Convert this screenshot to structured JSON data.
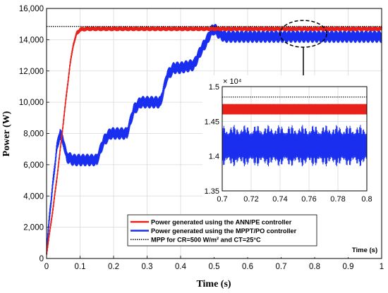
{
  "chart_data": {
    "type": "line",
    "main": {
      "xlabel": "Time (s)",
      "ylabel": "Power (W)",
      "xlim": [
        0,
        1
      ],
      "ylim": [
        0,
        16000
      ],
      "xticks": [
        0,
        0.1,
        0.2,
        0.3,
        0.4,
        0.5,
        0.6,
        0.7,
        0.8,
        0.9,
        1
      ],
      "xtick_labels": [
        "0",
        "0.1",
        "0.2",
        "0.3",
        "0.4",
        "0.5",
        "0.6",
        "0.7",
        "0.8",
        "0.9",
        "1"
      ],
      "yticks": [
        0,
        2000,
        4000,
        6000,
        8000,
        10000,
        12000,
        14000,
        16000
      ],
      "ytick_labels": [
        "0",
        "2,000",
        "4,000",
        "6,000",
        "8,000",
        "10,000",
        "12,000",
        "14,000",
        "16,000"
      ],
      "grid": true
    },
    "legend": {
      "placement": "bottom-center",
      "entries": [
        {
          "label": "Power generated using the ANN/PE controller",
          "color": "#e8201a",
          "style": "solid"
        },
        {
          "label": "Power generated using the MPPT/PO controller",
          "color": "#1a2ef0",
          "style": "solid"
        },
        {
          "label": "MPP for CR=500 W/m² and CT=25°C",
          "color": "#000000",
          "style": "dotted"
        }
      ]
    },
    "series": [
      {
        "color": "#e8201a",
        "x": [
          0,
          0.01,
          0.02,
          0.03,
          0.04,
          0.05,
          0.06,
          0.07,
          0.08,
          0.09,
          0.1,
          0.12,
          0.15,
          0.2,
          0.3,
          0.5,
          0.7,
          1.0
        ],
        "y": [
          300,
          1800,
          3300,
          5000,
          6800,
          8700,
          10600,
          12400,
          13700,
          14400,
          14650,
          14700,
          14700,
          14700,
          14700,
          14700,
          14700,
          14700
        ],
        "ripple": 150
      },
      {
        "color": "#1a2ef0",
        "x": [
          0,
          0.01,
          0.02,
          0.03,
          0.04,
          0.05,
          0.06,
          0.08,
          0.1,
          0.12,
          0.15,
          0.17,
          0.19,
          0.2,
          0.24,
          0.26,
          0.28,
          0.3,
          0.34,
          0.36,
          0.38,
          0.4,
          0.44,
          0.46,
          0.48,
          0.49,
          0.5,
          0.51,
          0.53,
          0.55,
          0.6,
          0.7,
          0.8,
          0.9,
          1.0
        ],
        "y": [
          500,
          3000,
          5000,
          7000,
          8000,
          7500,
          6500,
          6300,
          6300,
          6300,
          6300,
          7500,
          8000,
          8000,
          8000,
          9500,
          10000,
          10000,
          10000,
          11700,
          12200,
          12200,
          12400,
          13300,
          14000,
          14500,
          14700,
          14500,
          14200,
          14200,
          14200,
          14200,
          14200,
          14200,
          14200
        ],
        "ripple": 400
      },
      {
        "color": "#000000",
        "style": "dotted",
        "x": [
          0,
          1
        ],
        "y": [
          14850,
          14850
        ]
      }
    ],
    "inset": {
      "xlim": [
        0.7,
        0.8
      ],
      "ylim": [
        1.35,
        1.5
      ],
      "xticks": [
        0.7,
        0.72,
        0.74,
        0.76,
        0.78,
        0.8
      ],
      "xtick_labels": [
        "0.7",
        "0.72",
        "0.74",
        "0.76",
        "0.78",
        "0.8"
      ],
      "yticks": [
        1.35,
        1.4,
        1.45,
        1.5
      ],
      "ytick_labels": [
        "1.35",
        "1.4",
        "1.45",
        "1.5"
      ],
      "multiplier": "× 10⁴",
      "xlabel": "Time (s)",
      "mpp": 1.485,
      "red": {
        "low": 1.46,
        "high": 1.475
      },
      "blue": {
        "low": 1.385,
        "high": 1.445
      }
    }
  }
}
